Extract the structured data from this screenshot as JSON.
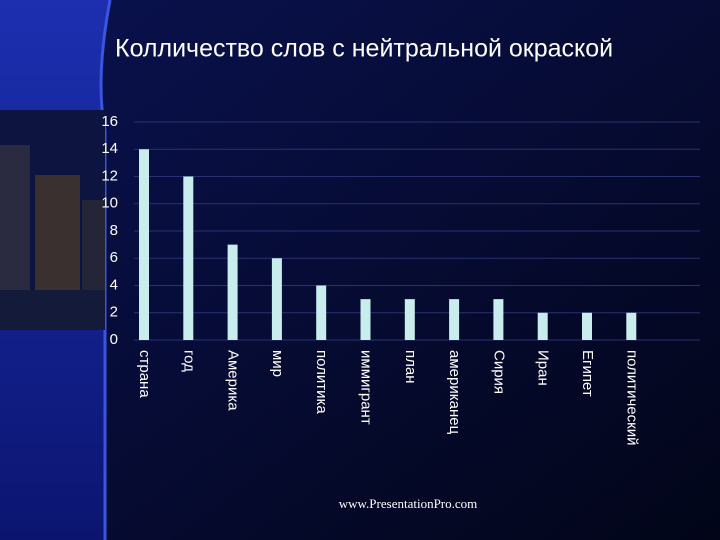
{
  "chart_data": {
    "type": "bar",
    "title": "Колличество слов с нейтральной окраской",
    "categories": [
      "страна",
      "год",
      "Америка",
      "мир",
      "политика",
      "иммигрант",
      "план",
      "американец",
      "Сирия",
      "Иран",
      "Египет",
      "политический"
    ],
    "values": [
      14,
      12,
      7,
      6,
      4,
      3,
      3,
      3,
      3,
      2,
      2,
      2
    ],
    "color": "#c9ecec",
    "ylim": [
      0,
      16
    ],
    "yticks": [
      0,
      2,
      4,
      6,
      8,
      10,
      12,
      14,
      16
    ],
    "grid": true
  },
  "footer": "www.PresentationPro.com"
}
